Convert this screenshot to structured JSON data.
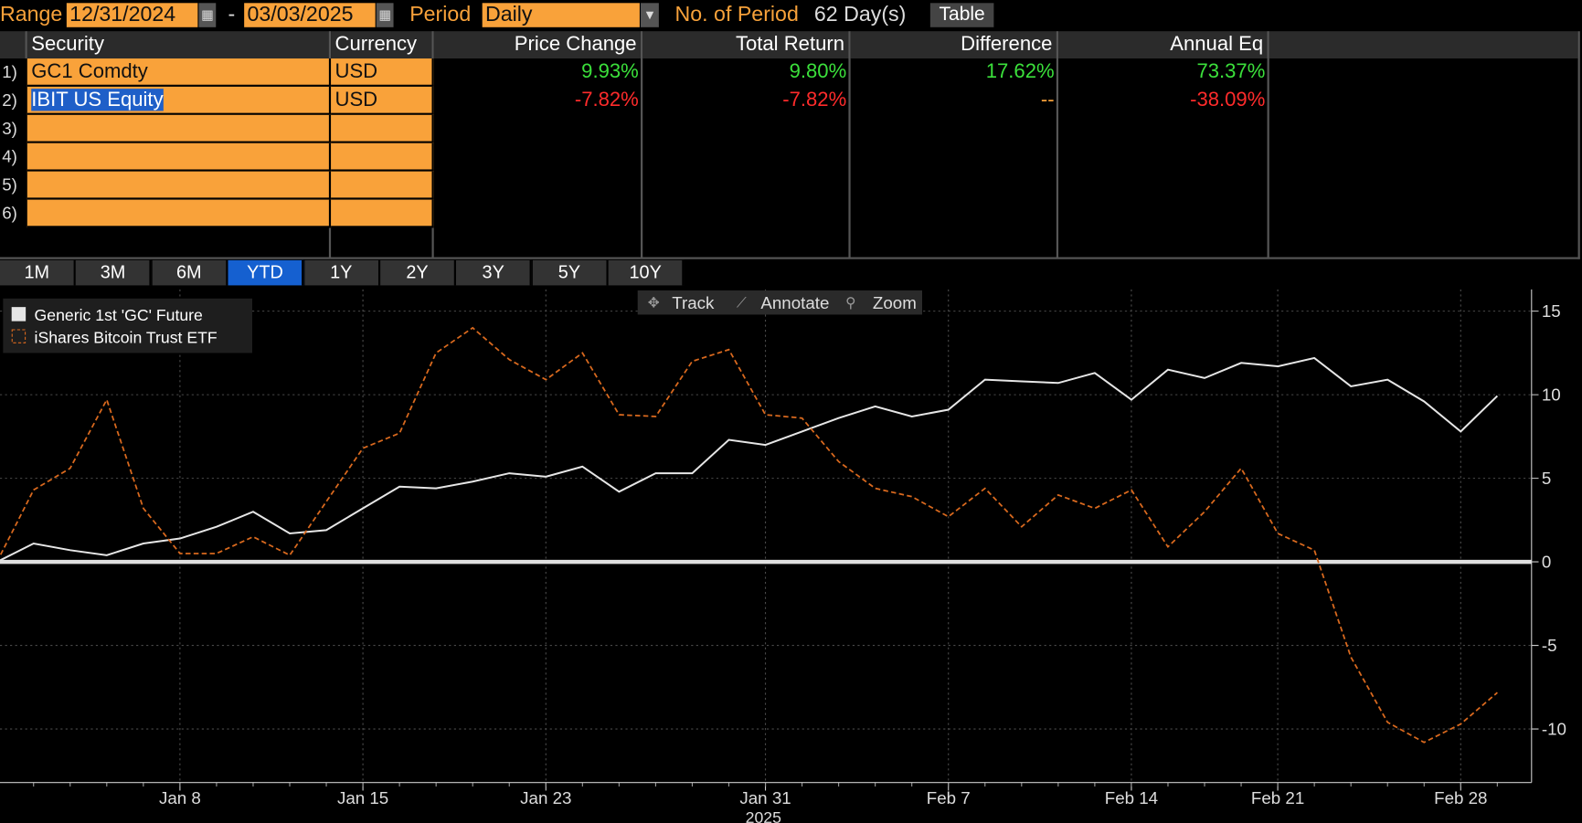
{
  "toolbar": {
    "range_label": "Range",
    "start_date": "12/31/2024",
    "separator": "-",
    "end_date": "03/03/2025",
    "period_label": "Period",
    "period_value": "Daily",
    "periods_label": "No. of Period",
    "periods_value": "62 Day(s)",
    "table_button": "Table"
  },
  "table": {
    "headers": [
      "Security",
      "Currency",
      "Price Change",
      "Total Return",
      "Difference",
      "Annual Eq"
    ],
    "row_numbers": [
      "1)",
      "2)",
      "3)",
      "4)",
      "5)",
      "6)"
    ],
    "rows": [
      [
        "GC1 Comdty",
        "USD",
        "9.93%",
        "9.80%",
        "17.62%",
        "73.37%"
      ],
      [
        "IBIT US Equity",
        "USD",
        "-7.82%",
        "-7.82%",
        "--",
        "-38.09%"
      ]
    ]
  },
  "range_buttons": {
    "items": [
      "1M",
      "3M",
      "6M",
      "YTD",
      "1Y",
      "2Y",
      "3Y",
      "5Y",
      "10Y"
    ],
    "selected": 3
  },
  "chart_tools": [
    "Track",
    "Annotate",
    "Zoom"
  ],
  "chart": {
    "type": "line",
    "legend": "top-left",
    "grid": true,
    "x": [
      "2024-12-31",
      "2025-01-02",
      "2025-01-03",
      "2025-01-06",
      "2025-01-07",
      "2025-01-08",
      "2025-01-09",
      "2025-01-10",
      "2025-01-13",
      "2025-01-14",
      "2025-01-15",
      "2025-01-16",
      "2025-01-17",
      "2025-01-21",
      "2025-01-22",
      "2025-01-23",
      "2025-01-24",
      "2025-01-27",
      "2025-01-28",
      "2025-01-29",
      "2025-01-30",
      "2025-01-31",
      "2025-02-03",
      "2025-02-04",
      "2025-02-05",
      "2025-02-06",
      "2025-02-07",
      "2025-02-10",
      "2025-02-11",
      "2025-02-12",
      "2025-02-13",
      "2025-02-14",
      "2025-02-18",
      "2025-02-19",
      "2025-02-20",
      "2025-02-21",
      "2025-02-24",
      "2025-02-25",
      "2025-02-26",
      "2025-02-27",
      "2025-02-28",
      "2025-03-03"
    ],
    "xticks": [
      {
        "value": "2025-01-08",
        "label": "Jan 8"
      },
      {
        "value": "2025-01-15",
        "label": "Jan 15"
      },
      {
        "value": "2025-01-23",
        "label": "Jan 23"
      },
      {
        "value": "2025-01-31",
        "label": "Jan 31"
      },
      {
        "value": "2025-02-07",
        "label": "Feb 7"
      },
      {
        "value": "2025-02-14",
        "label": "Feb 14"
      },
      {
        "value": "2025-02-21",
        "label": "Feb 21"
      },
      {
        "value": "2025-02-28",
        "label": "Feb 28"
      }
    ],
    "x_group_label": "2025",
    "ylim": [
      -13.2,
      16.3
    ],
    "yticks": [
      -10,
      -5,
      0,
      5,
      10,
      15
    ],
    "series": [
      {
        "name": "Generic 1st 'GC' Future",
        "color": "#e6e6e6",
        "line_style": "solid",
        "values": [
          0,
          1.1,
          0.7,
          0.4,
          1.1,
          1.4,
          2.1,
          3.0,
          1.7,
          1.9,
          3.2,
          4.5,
          4.4,
          4.8,
          5.3,
          5.1,
          5.7,
          4.2,
          5.3,
          5.3,
          7.3,
          7.0,
          7.8,
          8.6,
          9.3,
          8.7,
          9.1,
          10.9,
          10.8,
          10.7,
          11.3,
          9.7,
          11.5,
          11.0,
          11.9,
          11.7,
          12.2,
          10.5,
          10.9,
          9.6,
          7.8,
          9.93
        ]
      },
      {
        "name": "iShares Bitcoin Trust ETF",
        "color": "#d9691e",
        "line_style": "dashed",
        "values": [
          0,
          4.3,
          5.6,
          9.7,
          3.2,
          0.5,
          0.5,
          1.5,
          0.4,
          3.6,
          6.8,
          7.7,
          12.5,
          14.0,
          12.1,
          10.9,
          12.5,
          8.8,
          8.7,
          12.0,
          12.7,
          8.8,
          8.6,
          6.0,
          4.4,
          3.9,
          2.7,
          4.4,
          2.1,
          4.0,
          3.2,
          4.3,
          0.9,
          3.0,
          5.6,
          1.7,
          0.7,
          -5.7,
          -9.6,
          -10.8,
          -9.7,
          -7.82
        ]
      }
    ]
  }
}
